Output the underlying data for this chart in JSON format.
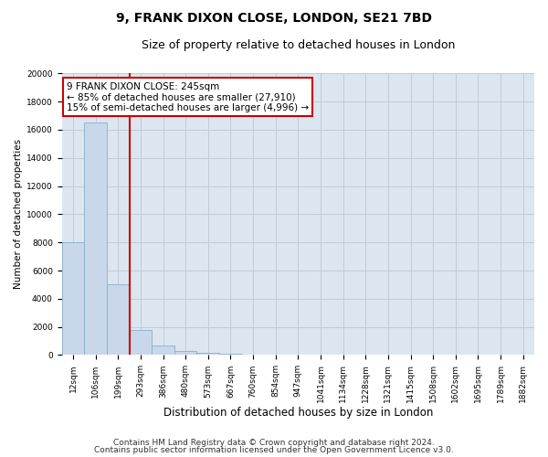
{
  "title1": "9, FRANK DIXON CLOSE, LONDON, SE21 7BD",
  "title2": "Size of property relative to detached houses in London",
  "xlabel": "Distribution of detached houses by size in London",
  "ylabel": "Number of detached properties",
  "bar_labels": [
    "12sqm",
    "106sqm",
    "199sqm",
    "293sqm",
    "386sqm",
    "480sqm",
    "573sqm",
    "667sqm",
    "760sqm",
    "854sqm",
    "947sqm",
    "1041sqm",
    "1134sqm",
    "1228sqm",
    "1321sqm",
    "1415sqm",
    "1508sqm",
    "1602sqm",
    "1695sqm",
    "1789sqm",
    "1882sqm"
  ],
  "bar_values": [
    8000,
    16500,
    5000,
    1800,
    700,
    300,
    150,
    80,
    50,
    30,
    0,
    0,
    0,
    0,
    0,
    0,
    0,
    0,
    0,
    0,
    0
  ],
  "bar_color": "#c8d8ea",
  "bar_edge_color": "#8aafc8",
  "vline_x": 2.5,
  "vline_color": "#cc0000",
  "annotation_text": "9 FRANK DIXON CLOSE: 245sqm\n← 85% of detached houses are smaller (27,910)\n15% of semi-detached houses are larger (4,996) →",
  "annotation_box_color": "#ffffff",
  "annotation_box_edge_color": "#cc0000",
  "grid_color": "#bfccd8",
  "background_color": "#dce6f0",
  "ylim": [
    0,
    20000
  ],
  "yticks": [
    0,
    2000,
    4000,
    6000,
    8000,
    10000,
    12000,
    14000,
    16000,
    18000,
    20000
  ],
  "footer1": "Contains HM Land Registry data © Crown copyright and database right 2024.",
  "footer2": "Contains public sector information licensed under the Open Government Licence v3.0.",
  "title1_fontsize": 10,
  "title2_fontsize": 9,
  "xlabel_fontsize": 8.5,
  "ylabel_fontsize": 7.5,
  "tick_fontsize": 6.5,
  "annotation_fontsize": 7.5,
  "footer_fontsize": 6.5
}
